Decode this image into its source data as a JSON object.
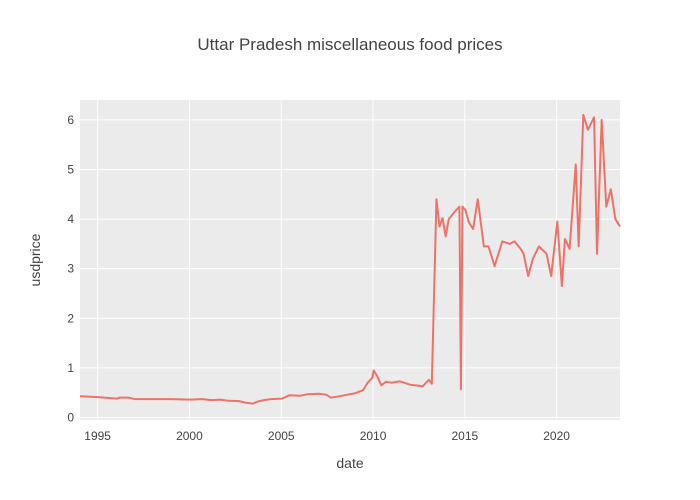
{
  "chart_data": {
    "type": "line",
    "title": "Uttar Pradesh miscellaneous food prices",
    "xlabel": "date",
    "ylabel": "usdprice",
    "xlim": [
      "1994-01-15",
      "2023-06-15"
    ],
    "ylim": [
      -0.05,
      6.4
    ],
    "x_ticks": [
      "1995",
      "2000",
      "2005",
      "2010",
      "2015",
      "2020"
    ],
    "y_ticks": [
      "0",
      "1",
      "2",
      "3",
      "4",
      "5",
      "6"
    ],
    "grid": true,
    "legend": "none",
    "colors": {
      "line": "#f07167",
      "plot_bg": "#ebebeb",
      "grid": "#ffffff",
      "text": "#444444"
    },
    "series": [
      {
        "x": [
          "1994-01-15",
          "1995-01-15",
          "1996-01-15",
          "1996-03-15",
          "1996-09-15",
          "1997-01-15",
          "1998-01-15",
          "1999-01-15",
          "2000-01-15",
          "2000-09-15",
          "2001-03-15",
          "2001-09-15",
          "2002-01-15",
          "2002-09-15",
          "2003-01-15",
          "2003-06-15",
          "2003-09-15",
          "2004-01-15",
          "2004-06-15",
          "2005-01-15",
          "2005-06-15",
          "2006-01-15",
          "2006-06-15",
          "2007-01-15",
          "2007-06-15",
          "2007-09-15",
          "2008-01-15",
          "2008-06-15",
          "2009-01-15",
          "2009-06-15",
          "2009-09-15",
          "2009-12-15",
          "2010-01-15",
          "2010-03-15",
          "2010-06-15",
          "2010-09-15",
          "2011-01-15",
          "2011-06-15",
          "2012-01-15",
          "2012-09-15",
          "2013-01-15",
          "2013-03-15",
          "2013-06-15",
          "2013-08-15",
          "2013-10-15",
          "2013-12-15",
          "2014-02-15",
          "2014-06-15",
          "2014-09-15",
          "2014-10-15",
          "2014-11-15",
          "2015-01-15",
          "2015-03-15",
          "2015-06-15",
          "2015-09-15",
          "2016-01-15",
          "2016-04-15",
          "2016-08-15",
          "2017-01-15",
          "2017-06-15",
          "2017-09-15",
          "2018-01-15",
          "2018-03-15",
          "2018-06-15",
          "2018-09-15",
          "2019-01-15",
          "2019-06-15",
          "2019-09-15",
          "2020-01-15",
          "2020-04-15",
          "2020-06-15",
          "2020-09-15",
          "2021-01-15",
          "2021-03-15",
          "2021-06-15",
          "2021-09-15",
          "2022-01-15",
          "2022-03-15",
          "2022-06-15",
          "2022-09-15",
          "2022-12-15",
          "2023-03-15",
          "2023-06-15"
        ],
        "y": [
          0.43,
          0.41,
          0.38,
          0.4,
          0.4,
          0.37,
          0.37,
          0.37,
          0.36,
          0.37,
          0.35,
          0.36,
          0.34,
          0.33,
          0.3,
          0.28,
          0.32,
          0.35,
          0.37,
          0.38,
          0.45,
          0.44,
          0.47,
          0.48,
          0.46,
          0.4,
          0.42,
          0.45,
          0.49,
          0.55,
          0.7,
          0.8,
          0.95,
          0.85,
          0.65,
          0.72,
          0.7,
          0.73,
          0.66,
          0.63,
          0.76,
          0.68,
          4.4,
          3.85,
          4.02,
          3.65,
          4.0,
          4.15,
          4.25,
          0.57,
          4.25,
          4.18,
          3.95,
          3.8,
          4.4,
          3.45,
          3.45,
          3.05,
          3.55,
          3.5,
          3.55,
          3.4,
          3.3,
          2.85,
          3.2,
          3.45,
          3.3,
          2.85,
          3.95,
          2.65,
          3.6,
          3.4,
          5.1,
          3.45,
          6.1,
          5.8,
          6.05,
          3.3,
          6.0,
          4.25,
          4.6,
          4.0,
          3.85
        ]
      }
    ]
  }
}
